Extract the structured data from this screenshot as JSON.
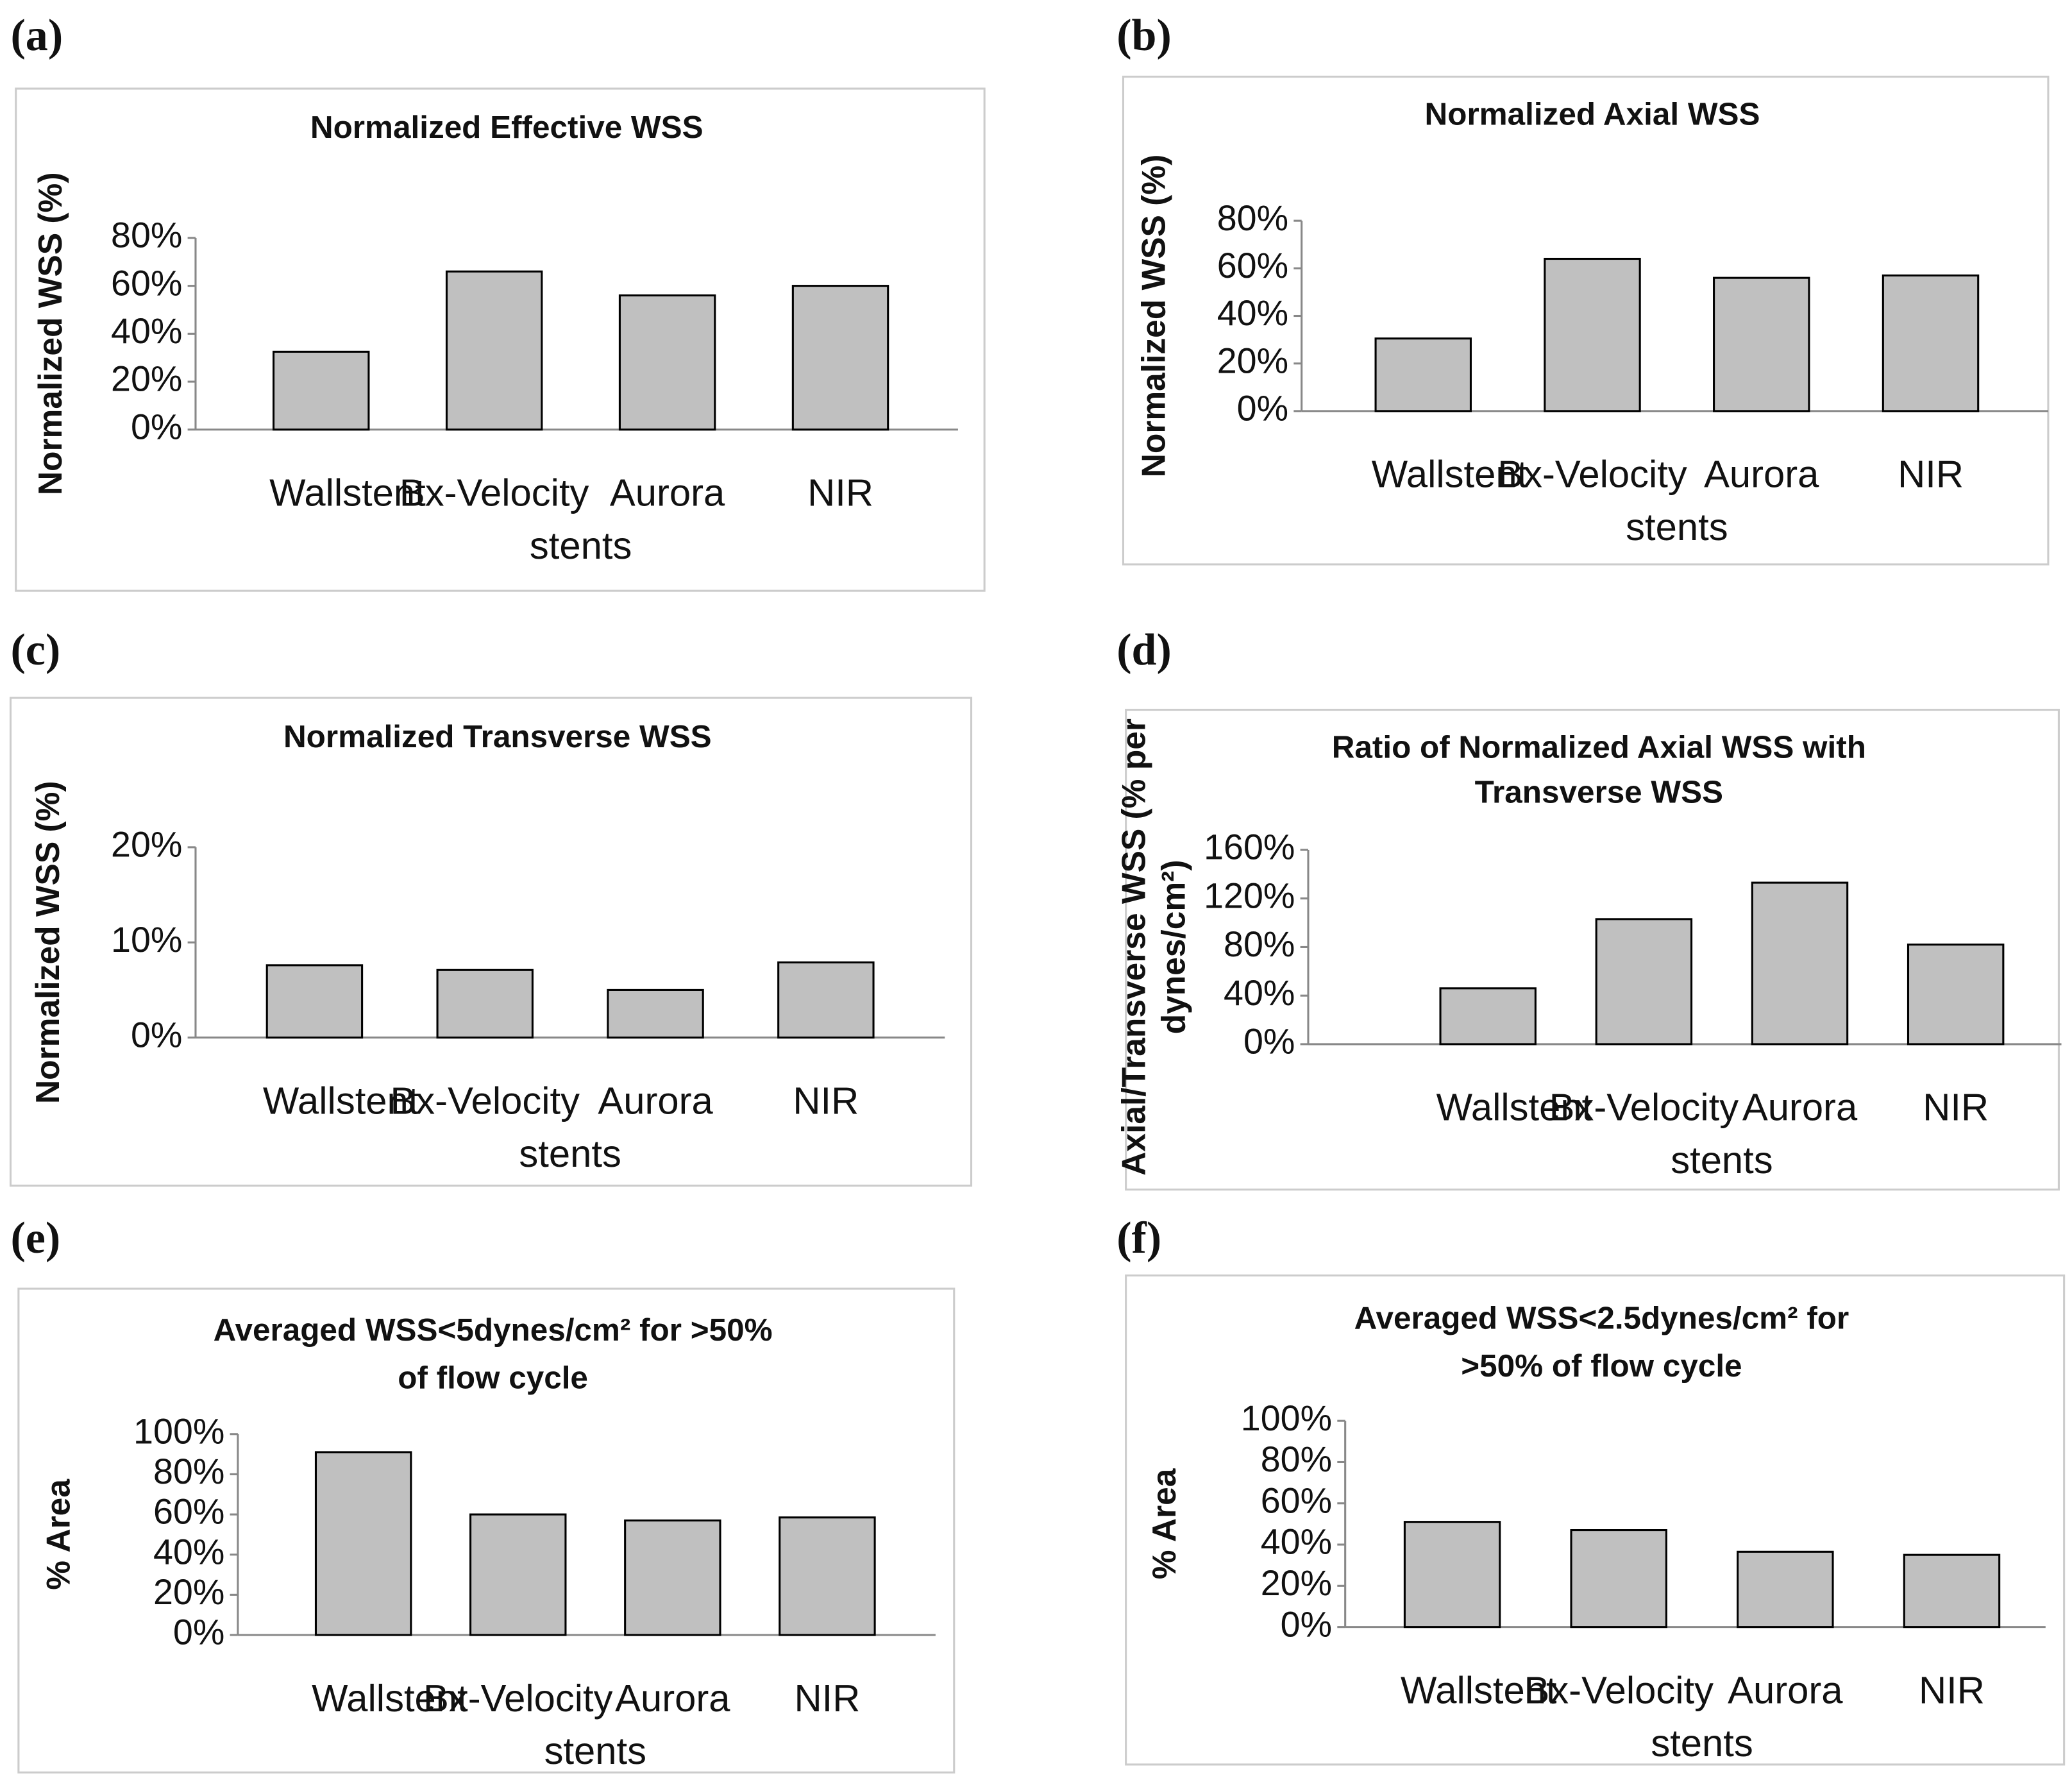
{
  "chart_data": [
    {
      "type": "bar",
      "panel": "(a)",
      "title": "Normalized Effective WSS",
      "y_label": "Normalized WSS (%)",
      "x_label": "stents",
      "categories": [
        "Wallstent",
        "Bx-Velocity",
        "Aurora",
        "NIR"
      ],
      "values": [
        32.5,
        66,
        56,
        60
      ],
      "color": "#c0c0c0",
      "ylim": [
        0,
        80
      ],
      "yticks": [
        {
          "value": 0,
          "label": "0%"
        },
        {
          "value": 20,
          "label": "20%"
        },
        {
          "value": 40,
          "label": "40%"
        },
        {
          "value": 60,
          "label": "60%"
        },
        {
          "value": 80,
          "label": "80%"
        }
      ]
    },
    {
      "type": "bar",
      "panel": "(b)",
      "title": "Normalized Axial WSS",
      "y_label": "Normalized WSS (%)",
      "x_label": "stents",
      "categories": [
        "Wallstent",
        "Bx-Velocity",
        "Aurora",
        "NIR"
      ],
      "values": [
        30.5,
        64,
        56,
        57
      ],
      "color": "#c0c0c0",
      "ylim": [
        0,
        80
      ],
      "yticks": [
        {
          "value": 0,
          "label": "0%"
        },
        {
          "value": 20,
          "label": "20%"
        },
        {
          "value": 40,
          "label": "40%"
        },
        {
          "value": 60,
          "label": "60%"
        },
        {
          "value": 80,
          "label": "80%"
        }
      ]
    },
    {
      "type": "bar",
      "panel": "(c)",
      "title": "Normalized Transverse WSS",
      "y_label": "Normalized WSS (%)",
      "x_label": "stents",
      "categories": [
        "Wallstent",
        "Bx-Velocity",
        "Aurora",
        "NIR"
      ],
      "values": [
        7.6,
        7.1,
        5,
        7.9
      ],
      "color": "#c0c0c0",
      "ylim": [
        0,
        20
      ],
      "yticks": [
        {
          "value": 0,
          "label": "0%"
        },
        {
          "value": 10,
          "label": "10%"
        },
        {
          "value": 20,
          "label": "20%"
        }
      ]
    },
    {
      "type": "bar",
      "panel": "(d)",
      "title": [
        "Ratio of Normalized Axial WSS with",
        "Transverse WSS"
      ],
      "y_label": [
        "Axial/Transverse WSS (% per",
        "dynes/cm²)"
      ],
      "x_label": "stents",
      "categories": [
        "Wallstent",
        "Bx-Velocity",
        "Aurora",
        "NIR"
      ],
      "values": [
        46,
        103,
        133,
        82
      ],
      "color": "#c0c0c0",
      "ylim": [
        0,
        160
      ],
      "yticks": [
        {
          "value": 0,
          "label": "0%"
        },
        {
          "value": 40,
          "label": "40%"
        },
        {
          "value": 80,
          "label": "80%"
        },
        {
          "value": 120,
          "label": "120%"
        },
        {
          "value": 160,
          "label": "160%"
        }
      ]
    },
    {
      "type": "bar",
      "panel": "(e)",
      "title": [
        "Averaged WSS<5dynes/cm² for >50%",
        "of flow cycle"
      ],
      "y_label": "% Area",
      "x_label": "stents",
      "categories": [
        "Wallstent",
        "Bx-Velocity",
        "Aurora",
        "NIR"
      ],
      "values": [
        91,
        60,
        57,
        58.5
      ],
      "color": "#c0c0c0",
      "ylim": [
        0,
        100
      ],
      "yticks": [
        {
          "value": 0,
          "label": "0%"
        },
        {
          "value": 20,
          "label": "20%"
        },
        {
          "value": 40,
          "label": "40%"
        },
        {
          "value": 60,
          "label": "60%"
        },
        {
          "value": 80,
          "label": "80%"
        },
        {
          "value": 100,
          "label": "100%"
        }
      ]
    },
    {
      "type": "bar",
      "panel": "(f)",
      "title": [
        "Averaged WSS<2.5dynes/cm² for",
        ">50% of flow cycle"
      ],
      "y_label": "% Area",
      "x_label": "stents",
      "categories": [
        "Wallstent",
        "Bx-Velocity",
        "Aurora",
        "NIR"
      ],
      "values": [
        51,
        47,
        36.5,
        35
      ],
      "color": "#c0c0c0",
      "ylim": [
        0,
        100
      ],
      "yticks": [
        {
          "value": 0,
          "label": "0%"
        },
        {
          "value": 20,
          "label": "20%"
        },
        {
          "value": 40,
          "label": "40%"
        },
        {
          "value": 60,
          "label": "60%"
        },
        {
          "value": 80,
          "label": "80%"
        },
        {
          "value": 100,
          "label": "100%"
        }
      ]
    }
  ]
}
